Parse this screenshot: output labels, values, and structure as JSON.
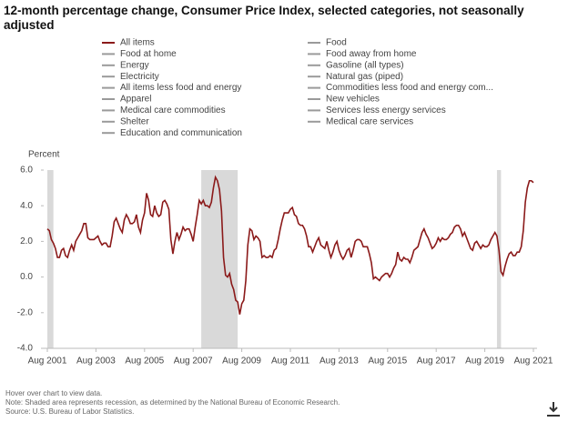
{
  "chart_data": {
    "type": "line",
    "title": "12-month percentage change, Consumer Price Index, selected categories, not seasonally adjusted",
    "y_label": "Percent",
    "series": [
      {
        "name": "All items",
        "color": "#8b1a1a",
        "values": [
          2.7,
          2.6,
          2.1,
          1.9,
          1.6,
          1.1,
          1.1,
          1.5,
          1.6,
          1.2,
          1.1,
          1.5,
          1.8,
          1.5,
          2.0,
          2.2,
          2.4,
          2.6,
          3.0,
          3.0,
          2.2,
          2.1,
          2.1,
          2.1,
          2.2,
          2.3,
          2.0,
          1.8,
          1.9,
          1.9,
          1.7,
          1.7,
          2.3,
          3.1,
          3.3,
          3.0,
          2.7,
          2.5,
          3.2,
          3.5,
          3.3,
          3.0,
          3.0,
          3.1,
          3.5,
          2.8,
          2.5,
          3.2,
          3.6,
          4.7,
          4.3,
          3.5,
          3.4,
          4.0,
          3.6,
          3.4,
          3.5,
          4.2,
          4.3,
          4.1,
          3.8,
          2.1,
          1.3,
          2.0,
          2.5,
          2.1,
          2.4,
          2.8,
          2.6,
          2.7,
          2.7,
          2.4,
          2.0,
          2.8,
          3.5,
          4.3,
          4.1,
          4.3,
          4.0,
          4.0,
          3.9,
          4.2,
          5.0,
          5.6,
          5.4,
          4.9,
          3.7,
          1.1,
          0.1,
          0.0,
          0.2,
          -0.4,
          -0.7,
          -1.3,
          -1.4,
          -2.1,
          -1.5,
          -1.3,
          -0.2,
          1.8,
          2.7,
          2.6,
          2.1,
          2.3,
          2.2,
          2.0,
          1.1,
          1.2,
          1.1,
          1.1,
          1.2,
          1.1,
          1.5,
          1.6,
          2.1,
          2.7,
          3.2,
          3.6,
          3.6,
          3.6,
          3.8,
          3.9,
          3.5,
          3.4,
          3.0,
          2.9,
          2.9,
          2.7,
          2.3,
          1.7,
          1.7,
          1.4,
          1.7,
          2.0,
          2.2,
          1.8,
          1.7,
          1.6,
          2.0,
          1.5,
          1.1,
          1.4,
          1.8,
          2.0,
          1.5,
          1.2,
          1.0,
          1.2,
          1.5,
          1.6,
          1.1,
          1.5,
          2.0,
          2.1,
          2.1,
          2.0,
          1.7,
          1.7,
          1.7,
          1.3,
          0.8,
          -0.1,
          0.0,
          -0.1,
          -0.2,
          0.0,
          0.1,
          0.2,
          0.2,
          0.0,
          0.2,
          0.5,
          0.7,
          1.4,
          1.0,
          0.9,
          1.1,
          1.0,
          1.0,
          0.8,
          1.1,
          1.5,
          1.6,
          1.7,
          2.1,
          2.5,
          2.7,
          2.4,
          2.2,
          1.9,
          1.6,
          1.7,
          1.9,
          2.2,
          2.0,
          2.2,
          2.1,
          2.1,
          2.2,
          2.4,
          2.5,
          2.8,
          2.9,
          2.9,
          2.7,
          2.3,
          2.5,
          2.2,
          1.9,
          1.6,
          1.5,
          1.9,
          2.0,
          1.8,
          1.6,
          1.8,
          1.7,
          1.7,
          1.8,
          2.1,
          2.3,
          2.5,
          2.3,
          1.5,
          0.3,
          0.1,
          0.6,
          1.0,
          1.3,
          1.4,
          1.2,
          1.2,
          1.4,
          1.4,
          1.7,
          2.6,
          4.2,
          5.0,
          5.4,
          5.4,
          5.3
        ]
      }
    ],
    "hidden_series": [
      "Food at home",
      "Energy",
      "Electricity",
      "All items less food and energy",
      "Apparel",
      "Medical care commodities",
      "Shelter",
      "Education and communication",
      "Food",
      "Food away from home",
      "Gasoline (all types)",
      "Natural gas (piped)",
      "Commodities less food and energy com...",
      "New vehicles",
      "Services less energy services",
      "Medical care services"
    ],
    "hidden_color": "#9a9a9a",
    "x_start": "2001-08",
    "x_step_months": 1,
    "xlim": [
      "2001-08",
      "2021-08"
    ],
    "xticks": [
      {
        "value": "2001-08",
        "label": "Aug 2001"
      },
      {
        "value": "2003-08",
        "label": "Aug 2003"
      },
      {
        "value": "2005-08",
        "label": "Aug 2005"
      },
      {
        "value": "2007-08",
        "label": "Aug 2007"
      },
      {
        "value": "2009-08",
        "label": "Aug 2009"
      },
      {
        "value": "2011-08",
        "label": "Aug 2011"
      },
      {
        "value": "2013-08",
        "label": "Aug 2013"
      },
      {
        "value": "2015-08",
        "label": "Aug 2015"
      },
      {
        "value": "2017-08",
        "label": "Aug 2017"
      },
      {
        "value": "2019-08",
        "label": "Aug 2019"
      },
      {
        "value": "2021-08",
        "label": "Aug 2021"
      }
    ],
    "ylim": [
      -4,
      6
    ],
    "yticks": [
      {
        "value": -4,
        "label": "-4.0"
      },
      {
        "value": -2,
        "label": "-2.0"
      },
      {
        "value": 0,
        "label": "0.0"
      },
      {
        "value": 2,
        "label": "2.0"
      },
      {
        "value": 4,
        "label": "4.0"
      },
      {
        "value": 6,
        "label": "6.0"
      }
    ],
    "shaded_ranges": [
      [
        "2001-08",
        "2001-11"
      ],
      [
        "2007-12",
        "2009-06"
      ],
      [
        "2020-02",
        "2020-04"
      ]
    ],
    "shade_color": "#d9d9d9",
    "notes": [
      "Hover over chart to view data.",
      "Note: Shaded area represents recession, as determined by the National Bureau of Economic Research.",
      "Source: U.S. Bureau of Labor Statistics."
    ]
  }
}
